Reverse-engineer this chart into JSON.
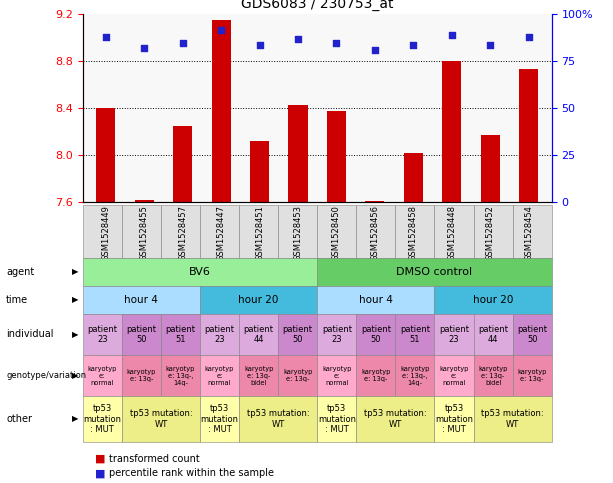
{
  "title": "GDS6083 / 230753_at",
  "samples": [
    "GSM1528449",
    "GSM1528455",
    "GSM1528457",
    "GSM1528447",
    "GSM1528451",
    "GSM1528453",
    "GSM1528450",
    "GSM1528456",
    "GSM1528458",
    "GSM1528448",
    "GSM1528452",
    "GSM1528454"
  ],
  "bar_values": [
    8.4,
    7.62,
    8.25,
    9.15,
    8.12,
    8.43,
    8.38,
    7.61,
    8.02,
    8.8,
    8.17,
    8.74
  ],
  "dot_values": [
    88,
    82,
    85,
    92,
    84,
    87,
    85,
    81,
    84,
    89,
    84,
    88
  ],
  "bar_base": 7.6,
  "ylim_left": [
    7.6,
    9.2
  ],
  "ylim_right": [
    0,
    100
  ],
  "yticks_left": [
    7.6,
    8.0,
    8.4,
    8.8,
    9.2
  ],
  "yticks_right": [
    0,
    25,
    50,
    75,
    100
  ],
  "hlines": [
    8.0,
    8.4,
    8.8
  ],
  "bar_color": "#cc0000",
  "dot_color": "#2222cc",
  "agent_groups": [
    {
      "text": "BV6",
      "start": 0,
      "end": 5,
      "color": "#99ee99"
    },
    {
      "text": "DMSO control",
      "start": 6,
      "end": 11,
      "color": "#66cc66"
    }
  ],
  "time_groups": [
    {
      "text": "hour 4",
      "start": 0,
      "end": 2,
      "color": "#aaddff"
    },
    {
      "text": "hour 20",
      "start": 3,
      "end": 5,
      "color": "#44bbdd"
    },
    {
      "text": "hour 4",
      "start": 6,
      "end": 8,
      "color": "#aaddff"
    },
    {
      "text": "hour 20",
      "start": 9,
      "end": 11,
      "color": "#44bbdd"
    }
  ],
  "individual_cells": [
    {
      "text": "patient\n23",
      "color": "#ddaadd"
    },
    {
      "text": "patient\n50",
      "color": "#cc88cc"
    },
    {
      "text": "patient\n51",
      "color": "#cc88cc"
    },
    {
      "text": "patient\n23",
      "color": "#ddaadd"
    },
    {
      "text": "patient\n44",
      "color": "#ddaadd"
    },
    {
      "text": "patient\n50",
      "color": "#cc88cc"
    },
    {
      "text": "patient\n23",
      "color": "#ddaadd"
    },
    {
      "text": "patient\n50",
      "color": "#cc88cc"
    },
    {
      "text": "patient\n51",
      "color": "#cc88cc"
    },
    {
      "text": "patient\n23",
      "color": "#ddaadd"
    },
    {
      "text": "patient\n44",
      "color": "#ddaadd"
    },
    {
      "text": "patient\n50",
      "color": "#cc88cc"
    }
  ],
  "genotype_cells": [
    {
      "text": "karyotyp\ne:\nnormal",
      "color": "#ffaacc"
    },
    {
      "text": "karyotyp\ne: 13q-",
      "color": "#ee88aa"
    },
    {
      "text": "karyotyp\ne: 13q-,\n14q-",
      "color": "#ee88aa"
    },
    {
      "text": "karyotyp\ne:\nnormal",
      "color": "#ffaacc"
    },
    {
      "text": "karyotyp\ne: 13q-\nbidel",
      "color": "#ee88aa"
    },
    {
      "text": "karyotyp\ne: 13q-",
      "color": "#ee88aa"
    },
    {
      "text": "karyotyp\ne:\nnormal",
      "color": "#ffaacc"
    },
    {
      "text": "karyotyp\ne: 13q-",
      "color": "#ee88aa"
    },
    {
      "text": "karyotyp\ne: 13q-,\n14q-",
      "color": "#ee88aa"
    },
    {
      "text": "karyotyp\ne:\nnormal",
      "color": "#ffaacc"
    },
    {
      "text": "karyotyp\ne: 13q-\nbidel",
      "color": "#ee88aa"
    },
    {
      "text": "karyotyp\ne: 13q-",
      "color": "#ee88aa"
    }
  ],
  "other_groups": [
    {
      "text": "tp53\nmutation\n: MUT",
      "start": 0,
      "end": 0,
      "color": "#ffffaa"
    },
    {
      "text": "tp53 mutation:\nWT",
      "start": 1,
      "end": 2,
      "color": "#eeee88"
    },
    {
      "text": "tp53\nmutation\n: MUT",
      "start": 3,
      "end": 3,
      "color": "#ffffaa"
    },
    {
      "text": "tp53 mutation:\nWT",
      "start": 4,
      "end": 5,
      "color": "#eeee88"
    },
    {
      "text": "tp53\nmutation\n: MUT",
      "start": 6,
      "end": 6,
      "color": "#ffffaa"
    },
    {
      "text": "tp53 mutation:\nWT",
      "start": 7,
      "end": 8,
      "color": "#eeee88"
    },
    {
      "text": "tp53\nmutation\n: MUT",
      "start": 9,
      "end": 9,
      "color": "#ffffaa"
    },
    {
      "text": "tp53 mutation:\nWT",
      "start": 10,
      "end": 11,
      "color": "#eeee88"
    }
  ],
  "row_labels": [
    "agent",
    "time",
    "individual",
    "genotype/variation",
    "other"
  ],
  "legend_items": [
    {
      "text": "  transformed count",
      "color": "#cc0000"
    },
    {
      "text": "  percentile rank within the sample",
      "color": "#2222cc"
    }
  ]
}
